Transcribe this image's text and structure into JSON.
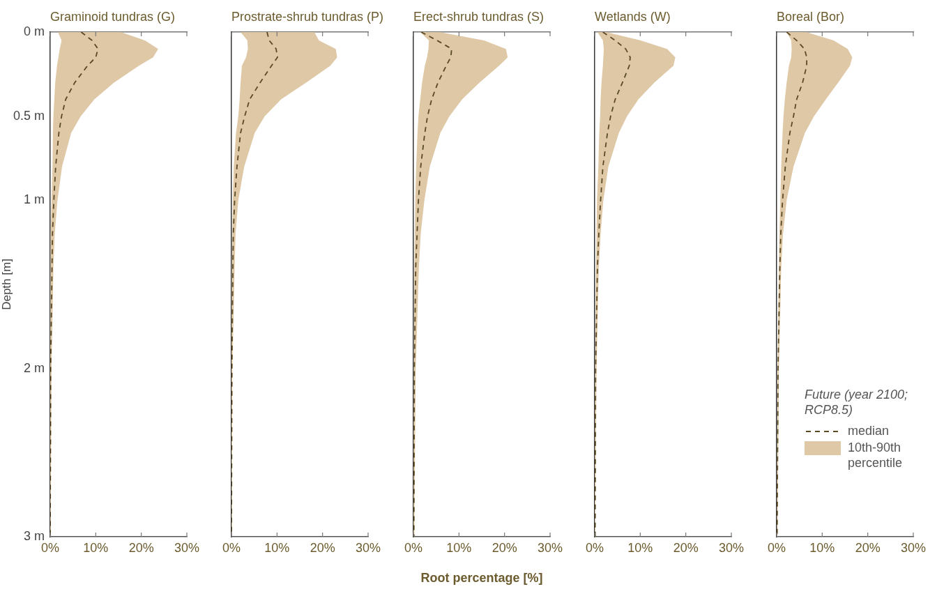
{
  "chart_data": [
    {
      "type": "line",
      "title": "Graminoid tundras (G)",
      "ylabel": "Depth [m]",
      "orientation": "horizontal",
      "x": [
        0,
        0.05,
        0.1,
        0.15,
        0.2,
        0.3,
        0.4,
        0.5,
        0.6,
        0.8,
        1,
        1.2,
        1.4,
        2,
        3
      ],
      "xlim": [
        0,
        30
      ],
      "xticks": [
        {
          "value": 0,
          "label": "0%"
        },
        {
          "value": 10,
          "label": "10%"
        },
        {
          "value": 20,
          "label": "20%"
        },
        {
          "value": 30,
          "label": "30%"
        }
      ],
      "ylim": [
        3,
        0
      ],
      "yticks": [
        {
          "value": 0,
          "label": "0 m"
        },
        {
          "value": 0.5,
          "label": "0.5 m"
        },
        {
          "value": 1,
          "label": "1 m"
        },
        {
          "value": 2,
          "label": "2 m"
        },
        {
          "value": 3,
          "label": "3 m"
        }
      ],
      "series": [
        {
          "color": "#5a4a24",
          "line_style": "dashed",
          "values": [
            6.8,
            9.2,
            10.5,
            10,
            8.2,
            5.4,
            3.4,
            2.5,
            1.9,
            1.2,
            0.8,
            0.5,
            0.4,
            0.1,
            0
          ],
          "lower": [
            1.7,
            2.5,
            2.1,
            1.8,
            1.5,
            1.1,
            0.9,
            0.7,
            0.6,
            0.5,
            0.3,
            0.1,
            0.1,
            0,
            0
          ],
          "upper": [
            15.5,
            20.8,
            23.7,
            22.6,
            19.5,
            14,
            9.7,
            6.7,
            4.6,
            2.6,
            1.6,
            1,
            0.7,
            0.3,
            0.1
          ]
        }
      ]
    },
    {
      "type": "line",
      "title": "Prostrate-shrub tundras (P)",
      "orientation": "horizontal",
      "tick_labels": "x",
      "x": [
        0,
        0.05,
        0.1,
        0.15,
        0.2,
        0.3,
        0.4,
        0.5,
        0.6,
        0.8,
        1,
        1.2,
        1.4,
        2,
        3
      ],
      "xlim": [
        0,
        30
      ],
      "xticks": [
        {
          "value": 0,
          "label": "0%"
        },
        {
          "value": 10,
          "label": "10%"
        },
        {
          "value": 20,
          "label": "20%"
        },
        {
          "value": 30,
          "label": "30%"
        }
      ],
      "ylim": [
        3,
        0
      ],
      "series": [
        {
          "color": "#5a4a24",
          "line_style": "dashed",
          "values": [
            7.8,
            8.3,
            9.8,
            10.1,
            8.8,
            6.3,
            4,
            2.9,
            2,
            1.2,
            0.7,
            0.4,
            0.3,
            0.1,
            0
          ],
          "lower": [
            2,
            3.5,
            3.6,
            3.2,
            2.3,
            2,
            1.8,
            1.5,
            1,
            0.5,
            0.3,
            0.2,
            0.1,
            0,
            0
          ],
          "upper": [
            18.2,
            19.2,
            22.9,
            23.2,
            21.7,
            16.4,
            10.9,
            7.3,
            5.1,
            2.8,
            1.5,
            0.9,
            0.7,
            0.2,
            0.1
          ]
        }
      ]
    },
    {
      "type": "line",
      "title": "Erect-shrub tundras (S)",
      "xlabel": "Root percentage [%]",
      "orientation": "horizontal",
      "tick_labels": "x",
      "x": [
        0,
        0.05,
        0.1,
        0.15,
        0.2,
        0.3,
        0.4,
        0.5,
        0.6,
        0.8,
        1,
        1.2,
        1.4,
        2,
        3
      ],
      "xlim": [
        0,
        30
      ],
      "xticks": [
        {
          "value": 0,
          "label": "0%"
        },
        {
          "value": 10,
          "label": "10%"
        },
        {
          "value": 20,
          "label": "20%"
        },
        {
          "value": 30,
          "label": "30%"
        }
      ],
      "ylim": [
        3,
        0
      ],
      "series": [
        {
          "color": "#5a4a24",
          "line_style": "dashed",
          "values": [
            1.7,
            5.2,
            8.4,
            8.2,
            7.2,
            5.4,
            4,
            3.1,
            2.5,
            1.6,
            1.1,
            0.8,
            0.5,
            0.2,
            0.1
          ],
          "lower": [
            1.5,
            3.4,
            3.3,
            3,
            2.5,
            1.9,
            1.5,
            1.1,
            0.9,
            0.6,
            0.4,
            0.3,
            0.2,
            0.1,
            0
          ],
          "upper": [
            5.7,
            15.5,
            20.3,
            20.7,
            18.8,
            14.5,
            10.7,
            7.9,
            5.9,
            3.6,
            2.4,
            1.6,
            1.2,
            0.5,
            0.2
          ]
        }
      ]
    },
    {
      "type": "line",
      "title": "Wetlands (W)",
      "orientation": "horizontal",
      "tick_labels": "x",
      "x": [
        0,
        0.05,
        0.1,
        0.15,
        0.2,
        0.3,
        0.4,
        0.5,
        0.6,
        0.8,
        1,
        1.2,
        1.4,
        2,
        3
      ],
      "xlim": [
        0,
        30
      ],
      "xticks": [
        {
          "value": 0,
          "label": "0%"
        },
        {
          "value": 10,
          "label": "10%"
        },
        {
          "value": 20,
          "label": "20%"
        },
        {
          "value": 30,
          "label": "30%"
        }
      ],
      "ylim": [
        3,
        0
      ],
      "series": [
        {
          "color": "#5a4a24",
          "line_style": "dashed",
          "values": [
            1.8,
            4.5,
            6.8,
            7.8,
            7.6,
            6.1,
            4.5,
            3.5,
            2.8,
            1.8,
            1.3,
            0.9,
            0.6,
            0.2,
            0.1
          ],
          "lower": [
            0.6,
            1.8,
            2,
            1.9,
            1.8,
            1.5,
            1.3,
            1.2,
            1,
            0.8,
            0.5,
            0.4,
            0.3,
            0.1,
            0
          ],
          "upper": [
            2.5,
            10.1,
            15.9,
            17.7,
            17.3,
            13.1,
            9.6,
            7.1,
            5.3,
            3,
            1.9,
            1.3,
            0.9,
            0.4,
            0.1
          ]
        }
      ]
    },
    {
      "type": "line",
      "title": "Boreal (Bor)",
      "orientation": "horizontal",
      "tick_labels": "x",
      "legend": "bottom right",
      "legend_title": "Future (year 2100; RCP8.5)",
      "annotations": [
        "10th-90th percentile"
      ],
      "x": [
        0,
        0.05,
        0.1,
        0.15,
        0.2,
        0.3,
        0.4,
        0.5,
        0.6,
        0.8,
        1,
        1.2,
        1.4,
        2,
        3
      ],
      "xlim": [
        0,
        30
      ],
      "xticks": [
        {
          "value": 0,
          "label": "0%"
        },
        {
          "value": 10,
          "label": "10%"
        },
        {
          "value": 20,
          "label": "20%"
        },
        {
          "value": 30,
          "label": "30%"
        }
      ],
      "ylim": [
        3,
        0
      ],
      "series": [
        {
          "name": "median",
          "color": "#5a4a24",
          "line_style": "dashed",
          "values": [
            2.2,
            4.4,
            6.1,
            6.6,
            6.6,
            5.7,
            4.4,
            3.7,
            2.9,
            1.9,
            1.3,
            0.9,
            0.7,
            0.3,
            0.1
          ],
          "lower": [
            2.2,
            3.2,
            3.3,
            3.2,
            2.7,
            2.2,
            1.8,
            1.5,
            1.3,
            1,
            0.8,
            0.6,
            0.5,
            0.2,
            0.1
          ],
          "upper": [
            6.5,
            12.5,
            15.6,
            16.6,
            16.1,
            13.5,
            10.8,
            8.2,
            6.2,
            3.7,
            2.2,
            1.4,
            1,
            0.5,
            0.2
          ]
        }
      ]
    }
  ]
}
